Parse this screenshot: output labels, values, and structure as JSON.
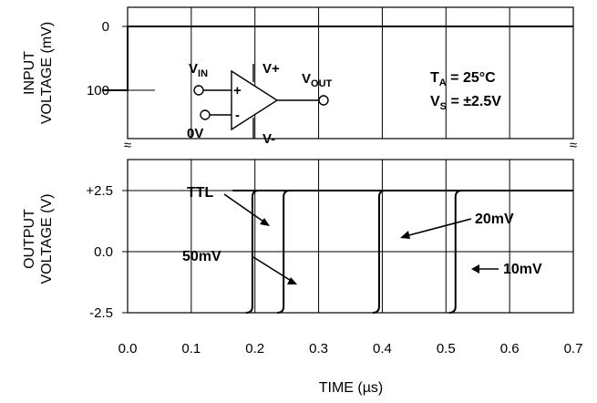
{
  "chart_data": {
    "type": "line",
    "xlabel": "TIME (µs)",
    "x_ticks": [
      "0.0",
      "0.1",
      "0.2",
      "0.3",
      "0.4",
      "0.5",
      "0.6",
      "0.7"
    ],
    "xlim": [
      0.0,
      0.7
    ],
    "input_panel": {
      "ylabel_lines": [
        "INPUT",
        "VOLTAGE (mV)"
      ],
      "y_ticks": [
        "0",
        "100"
      ],
      "ylim_mV": [
        0,
        100
      ],
      "waveform": {
        "x": [
          -0.04,
          0.0,
          0.0,
          0.7
        ],
        "y": [
          100,
          100,
          0,
          0
        ]
      }
    },
    "output_panel": {
      "ylabel_lines": [
        "OUTPUT",
        "VOLTAGE (V)"
      ],
      "y_ticks": [
        "+2.5",
        "0.0",
        "-2.5"
      ],
      "ylim_V": [
        -2.5,
        2.5
      ],
      "high_level_start": 0.165,
      "series": [
        {
          "name": "TTL",
          "switch_time": 0.196
        },
        {
          "name": "50mV",
          "switch_time": 0.245
        },
        {
          "name": "20mV",
          "switch_time": 0.395
        },
        {
          "name": "10mV",
          "switch_time": 0.515
        }
      ]
    },
    "annotations": {
      "conditions_ta_prefix": "T",
      "conditions_ta_sub": "A",
      "conditions_ta_suffix": " = 25°C",
      "conditions_vs_prefix": "V",
      "conditions_vs_sub": "S",
      "conditions_vs_suffix": " = ±2.5V",
      "circuit": {
        "vin_main": "V",
        "vin_sub": "IN",
        "vout_main": "V",
        "vout_sub": "OUT",
        "vplus": "V+",
        "vminus": "V-",
        "ref": "0V",
        "plus_sign": "+",
        "minus_sign": "-"
      }
    },
    "break_marks": [
      "≈",
      "≈"
    ],
    "grid": true
  }
}
